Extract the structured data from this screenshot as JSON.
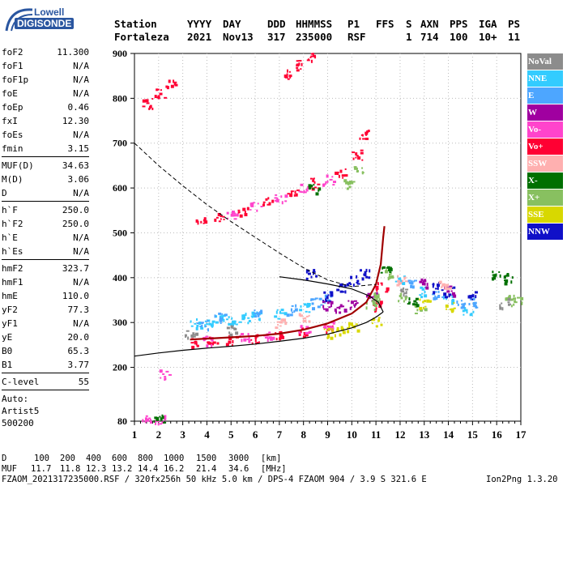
{
  "logo": {
    "line1": "Lowell",
    "line2": "DIGISONDE"
  },
  "header": {
    "labels": [
      "Station",
      "YYYY",
      "DAY",
      "DDD",
      "HHMMSS",
      "P1",
      "FFS",
      "S",
      "AXN",
      "PPS",
      "IGA",
      "PS"
    ],
    "values": [
      "Fortaleza",
      "2021",
      "Nov13",
      "317",
      "235000",
      "RSF",
      "1",
      "714",
      "100",
      "10+",
      "11"
    ]
  },
  "params": {
    "group1": [
      {
        "label": "foF2",
        "value": "11.300"
      },
      {
        "label": "foF1",
        "value": "N/A"
      },
      {
        "label": "foF1p",
        "value": "N/A"
      },
      {
        "label": "foE",
        "value": "N/A"
      },
      {
        "label": "foEp",
        "value": "0.46"
      },
      {
        "label": "fxI",
        "value": "12.30"
      },
      {
        "label": "foEs",
        "value": "N/A"
      },
      {
        "label": "fmin",
        "value": "3.15"
      }
    ],
    "group2": [
      {
        "label": "MUF(D)",
        "value": "34.63"
      },
      {
        "label": "M(D)",
        "value": "3.06"
      },
      {
        "label": "D",
        "value": "N/A"
      }
    ],
    "group3": [
      {
        "label": "h`F",
        "value": "250.0"
      },
      {
        "label": "h`F2",
        "value": "250.0"
      },
      {
        "label": "h`E",
        "value": "N/A"
      },
      {
        "label": "h`Es",
        "value": "N/A"
      }
    ],
    "group4": [
      {
        "label": "hmF2",
        "value": "323.7"
      },
      {
        "label": "hmF1",
        "value": "N/A"
      },
      {
        "label": "hmE",
        "value": "110.0"
      },
      {
        "label": "yF2",
        "value": "77.3"
      },
      {
        "label": "yF1",
        "value": "N/A"
      },
      {
        "label": "yE",
        "value": "20.0"
      },
      {
        "label": "B0",
        "value": "65.3"
      },
      {
        "label": "B1",
        "value": "3.77"
      }
    ],
    "group5": [
      {
        "label": "C-level",
        "value": "55"
      }
    ],
    "tail": [
      "Auto:",
      "Artist5",
      "500200"
    ]
  },
  "legend": [
    {
      "label": "NoVal",
      "color": "#8c8c8c"
    },
    {
      "label": "NNE",
      "color": "#33ccff"
    },
    {
      "label": "E",
      "color": "#4da6ff"
    },
    {
      "label": "W",
      "color": "#a000a0"
    },
    {
      "label": "Vo-",
      "color": "#ff44cc"
    },
    {
      "label": "Vo+",
      "color": "#ff0033"
    },
    {
      "label": "SSW",
      "color": "#ffb0b0"
    },
    {
      "label": "X-",
      "color": "#007000"
    },
    {
      "label": "X+",
      "color": "#88c060"
    },
    {
      "label": "SSE",
      "color": "#d8d800"
    },
    {
      "label": "NNW",
      "color": "#1010c8"
    }
  ],
  "footer": {
    "d_label": "D",
    "d_values": [
      "100",
      "200",
      "400",
      "600",
      "800",
      "1000",
      "1500",
      "3000"
    ],
    "d_unit": "[km]",
    "muf_label": "MUF",
    "muf_values": [
      "11.7",
      "11.8",
      "12.3",
      "13.2",
      "14.4",
      "16.2",
      "21.4",
      "34.6"
    ],
    "muf_unit": "[MHz]",
    "info": "FZAOM_2021317235000.RSF / 320fx256h 50 kHz 5.0 km / DPS-4 FZAOM 904 / 3.9 S 321.6 E",
    "version": "Ion2Png 1.3.20"
  },
  "chart_data": {
    "type": "scatter",
    "xlim": [
      1,
      17
    ],
    "ylim": [
      80,
      900
    ],
    "x_ticks": [
      1,
      2,
      3,
      4,
      5,
      6,
      7,
      8,
      9,
      10,
      11,
      12,
      13,
      14,
      15,
      16,
      17
    ],
    "y_ticks": [
      80,
      200,
      300,
      400,
      500,
      600,
      700,
      800,
      900
    ],
    "grid": true,
    "legend_position": "right",
    "profile_curve": [
      [
        1,
        225
      ],
      [
        2,
        232
      ],
      [
        3,
        238
      ],
      [
        4,
        243
      ],
      [
        5,
        247
      ],
      [
        6,
        252
      ],
      [
        7,
        258
      ],
      [
        8,
        265
      ],
      [
        9,
        274
      ],
      [
        10,
        288
      ],
      [
        10.6,
        300
      ],
      [
        11,
        312
      ],
      [
        11.3,
        323.7
      ]
    ],
    "profile_curve_upper": [
      [
        11.3,
        323.7
      ],
      [
        11.1,
        345
      ],
      [
        10.7,
        360
      ],
      [
        10,
        375
      ],
      [
        9,
        386
      ],
      [
        8,
        395
      ],
      [
        7,
        402
      ]
    ],
    "dashed_curve": [
      [
        1,
        700
      ],
      [
        2,
        650
      ],
      [
        3,
        605
      ],
      [
        4,
        563
      ],
      [
        5,
        525
      ],
      [
        6,
        490
      ],
      [
        7,
        455
      ],
      [
        8,
        422
      ],
      [
        9,
        395
      ],
      [
        10,
        380
      ],
      [
        11,
        385
      ]
    ],
    "trace_o_mode": [
      [
        3.3,
        262
      ],
      [
        4,
        264
      ],
      [
        5,
        267
      ],
      [
        6,
        270
      ],
      [
        7,
        275
      ],
      [
        8,
        284
      ],
      [
        9,
        298
      ],
      [
        10,
        320
      ],
      [
        10.6,
        345
      ],
      [
        11,
        385
      ],
      [
        11.2,
        430
      ],
      [
        11.3,
        490
      ],
      [
        11.35,
        515
      ]
    ],
    "series": [
      {
        "name": "Vo+",
        "points": [
          [
            3.5,
            258
          ],
          [
            4.2,
            260
          ],
          [
            5,
            262
          ],
          [
            6,
            266
          ],
          [
            7,
            270
          ],
          [
            8,
            280
          ],
          [
            9,
            292
          ],
          [
            3.7,
            525
          ],
          [
            4.5,
            535
          ],
          [
            5.5,
            552
          ],
          [
            6.5,
            570
          ],
          [
            7.5,
            590
          ],
          [
            8.5,
            612
          ],
          [
            9.5,
            635
          ],
          [
            10.2,
            675
          ],
          [
            10.5,
            720
          ],
          [
            1.5,
            790
          ],
          [
            2,
            812
          ],
          [
            2.5,
            832
          ],
          [
            7.2,
            855
          ],
          [
            7.8,
            875
          ],
          [
            8.3,
            892
          ],
          [
            11,
            340
          ],
          [
            11.2,
            380
          ]
        ]
      },
      {
        "name": "Vo-",
        "points": [
          [
            4,
            262
          ],
          [
            5.5,
            270
          ],
          [
            6.5,
            275
          ],
          [
            8,
            285
          ],
          [
            9,
            300
          ],
          [
            5,
            540
          ],
          [
            6,
            560
          ],
          [
            7,
            580
          ],
          [
            8,
            600
          ],
          [
            9,
            620
          ],
          [
            1.5,
            88
          ],
          [
            2,
            84
          ],
          [
            2.2,
            186
          ]
        ]
      },
      {
        "name": "NNE",
        "points": [
          [
            3.5,
            300
          ],
          [
            4,
            305
          ],
          [
            4.5,
            310
          ],
          [
            5,
            308
          ],
          [
            5.5,
            312
          ],
          [
            6,
            315
          ],
          [
            7,
            320
          ],
          [
            8,
            335
          ],
          [
            12,
            400
          ],
          [
            13,
            370
          ],
          [
            14,
            355
          ],
          [
            14.8,
            330
          ]
        ]
      },
      {
        "name": "E",
        "points": [
          [
            3.8,
            298
          ],
          [
            4.5,
            315
          ],
          [
            6,
            322
          ],
          [
            7.5,
            330
          ],
          [
            8.5,
            345
          ],
          [
            9,
            360
          ],
          [
            12.5,
            385
          ],
          [
            13.5,
            360
          ],
          [
            14.5,
            340
          ],
          [
            15,
            345
          ]
        ]
      },
      {
        "name": "NNW",
        "points": [
          [
            9,
            360
          ],
          [
            9.5,
            380
          ],
          [
            10,
            395
          ],
          [
            10.5,
            410
          ],
          [
            8.3,
            410
          ],
          [
            13.5,
            380
          ],
          [
            14,
            370
          ],
          [
            15,
            360
          ]
        ]
      },
      {
        "name": "W",
        "points": [
          [
            9,
            340
          ],
          [
            9.5,
            330
          ],
          [
            10,
            345
          ],
          [
            10.8,
            360
          ],
          [
            13,
            390
          ],
          [
            14,
            372
          ]
        ]
      },
      {
        "name": "X+",
        "points": [
          [
            10.8,
            340
          ],
          [
            11,
            360
          ],
          [
            11.5,
            410
          ],
          [
            12,
            360
          ],
          [
            12.8,
            330
          ],
          [
            16.5,
            360
          ],
          [
            16.8,
            350
          ],
          [
            9.8,
            610
          ],
          [
            10.3,
            640
          ]
        ]
      },
      {
        "name": "X-",
        "points": [
          [
            11.4,
            420
          ],
          [
            12.5,
            350
          ],
          [
            16,
            410
          ],
          [
            16.5,
            400
          ],
          [
            2,
            84
          ],
          [
            8.4,
            600
          ]
        ]
      },
      {
        "name": "SSE",
        "points": [
          [
            9,
            278
          ],
          [
            10,
            290
          ],
          [
            9.5,
            285
          ],
          [
            11,
            305
          ],
          [
            13,
            345
          ],
          [
            14,
            335
          ]
        ]
      },
      {
        "name": "SSW",
        "points": [
          [
            7,
            300
          ],
          [
            8,
            315
          ],
          [
            12,
            395
          ],
          [
            13.8,
            385
          ]
        ]
      },
      {
        "name": "NoVal",
        "points": [
          [
            3.3,
            275
          ],
          [
            5,
            285
          ],
          [
            12.2,
            370
          ],
          [
            16.3,
            345
          ]
        ]
      }
    ]
  }
}
